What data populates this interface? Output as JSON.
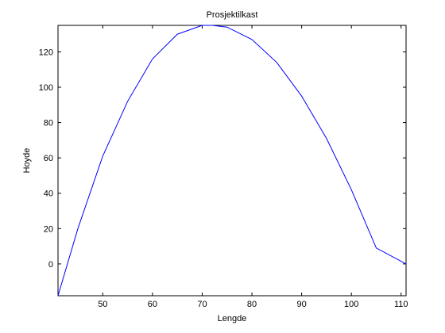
{
  "chart_data": {
    "type": "line",
    "title": "Prosjektilkast",
    "xlabel": "Lengde",
    "ylabel": "Hoyde",
    "xlim": [
      41,
      111
    ],
    "ylim": [
      -18,
      135
    ],
    "xticks": [
      50,
      60,
      70,
      80,
      90,
      100,
      110
    ],
    "yticks": [
      0,
      20,
      40,
      60,
      80,
      100,
      120
    ],
    "grid": false,
    "series": [
      {
        "color": "#0000ff",
        "x": [
          41,
          45,
          50,
          55,
          60,
          65,
          70,
          72,
          75,
          80,
          85,
          90,
          95,
          100,
          105,
          111
        ],
        "y": [
          -18,
          20,
          61,
          92,
          116,
          130,
          135,
          135,
          134,
          127,
          114,
          95,
          71,
          42,
          9,
          0
        ]
      }
    ]
  }
}
